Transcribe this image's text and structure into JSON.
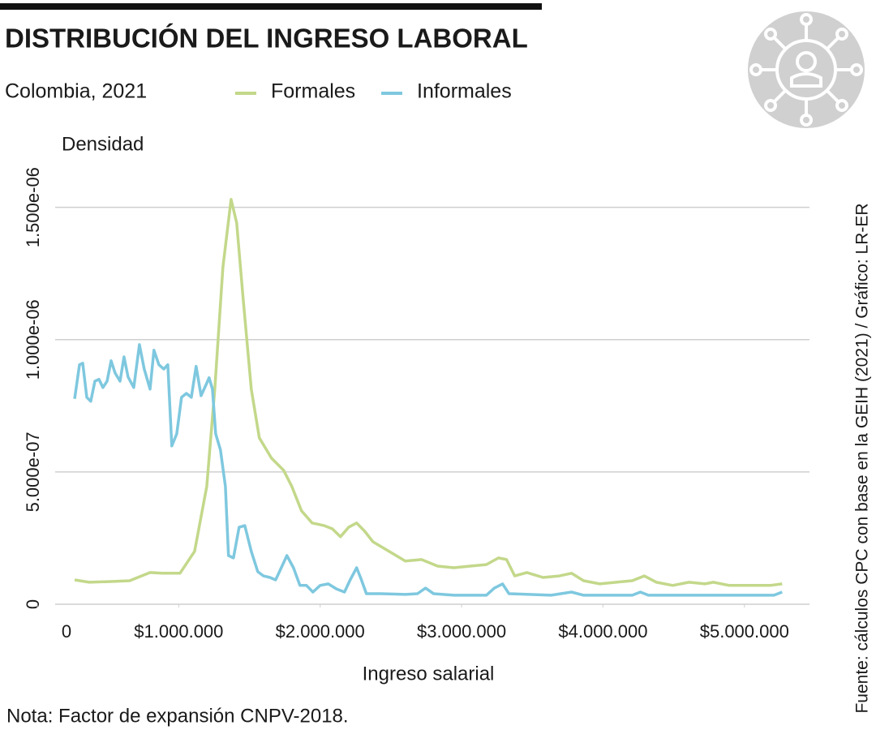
{
  "chart_data": {
    "type": "line",
    "title": "DISTRIBUCIÓN DEL INGRESO LABORAL",
    "subtitle": "Colombia, 2021",
    "y_label": "Densidad",
    "x_label": "Ingreso salarial",
    "note": "Nota: Factor de expansión CNPV-2018.",
    "source": "Fuente: cálculos CPC con base en la GEIH (2021) / Gráfico: LR-ER",
    "xlim": [
      0,
      5460000
    ],
    "ylim": [
      0,
      1.6e-06
    ],
    "xticks": [
      0,
      {
        "value": 1000000,
        "label": "$1.000.000"
      },
      {
        "value": 2000000,
        "label": "$2.000.000"
      },
      {
        "value": 3000000,
        "label": "$3.000.000"
      },
      {
        "value": 4000000,
        "label": "$4.000.000"
      },
      {
        "value": 5000000,
        "label": "$5.000.000"
      }
    ],
    "yticks": [
      0,
      {
        "value": 5e-07,
        "label": "5.000e-07"
      },
      {
        "value": 1e-06,
        "label": "1.000e-06"
      },
      {
        "value": 1.5e-06,
        "label": "1.500e-06"
      }
    ],
    "grid": true,
    "series": [
      {
        "name": "Formales",
        "color": "#c3d88a",
        "x": [
          264000,
          367000,
          539000,
          653000,
          797000,
          883000,
          1009000,
          1112000,
          1198000,
          1255000,
          1312000,
          1370000,
          1410000,
          1456000,
          1513000,
          1570000,
          1656000,
          1742000,
          1800000,
          1868000,
          1943000,
          2029000,
          2086000,
          2143000,
          2201000,
          2258000,
          2315000,
          2373000,
          2487000,
          2602000,
          2716000,
          2831000,
          2946000,
          3060000,
          3175000,
          3261000,
          3318000,
          3376000,
          3462000,
          3576000,
          3691000,
          3777000,
          3863000,
          3977000,
          4092000,
          4206000,
          4292000,
          4378000,
          4493000,
          4608000,
          4722000,
          4780000,
          4894000,
          5066000,
          5181000,
          5267000
        ],
        "values": [
          9.2e-08,
          8.3e-08,
          8.6e-08,
          8.9e-08,
          1.2e-07,
          1.17e-07,
          1.17e-07,
          2e-07,
          4.45e-07,
          8.13e-07,
          1.273e-06,
          1.53e-06,
          1.441e-06,
          1.15e-06,
          8.13e-07,
          6.29e-07,
          5.52e-07,
          5.06e-07,
          4.45e-07,
          3.53e-07,
          3.07e-07,
          2.97e-07,
          2.85e-07,
          2.55e-07,
          2.91e-07,
          3.07e-07,
          2.76e-07,
          2.36e-07,
          2e-07,
          1.63e-07,
          1.69e-07,
          1.44e-07,
          1.38e-07,
          1.44e-07,
          1.5e-07,
          1.75e-07,
          1.69e-07,
          1.07e-07,
          1.2e-07,
          1.01e-07,
          1.07e-07,
          1.17e-07,
          8.9e-08,
          7.7e-08,
          8.3e-08,
          8.9e-08,
          1.07e-07,
          8.3e-08,
          7.1e-08,
          8.3e-08,
          7.7e-08,
          8.3e-08,
          7.1e-08,
          7.1e-08,
          7.1e-08,
          7.7e-08
        ]
      },
      {
        "name": "Informales",
        "color": "#7ec8df",
        "x": [
          264000,
          298000,
          321000,
          350000,
          378000,
          407000,
          436000,
          464000,
          493000,
          522000,
          550000,
          585000,
          613000,
          642000,
          682000,
          722000,
          756000,
          797000,
          825000,
          860000,
          894000,
          923000,
          951000,
          986000,
          1020000,
          1054000,
          1089000,
          1123000,
          1158000,
          1192000,
          1215000,
          1238000,
          1261000,
          1295000,
          1330000,
          1352000,
          1387000,
          1427000,
          1467000,
          1513000,
          1559000,
          1599000,
          1645000,
          1685000,
          1725000,
          1765000,
          1811000,
          1857000,
          1903000,
          1949000,
          2000000,
          2057000,
          2115000,
          2172000,
          2212000,
          2258000,
          2292000,
          2327000,
          2430000,
          2602000,
          2688000,
          2745000,
          2802000,
          2946000,
          3175000,
          3232000,
          3290000,
          3335000,
          3633000,
          3777000,
          3863000,
          4207000,
          4264000,
          4321000,
          4894000,
          5209000,
          5267000
        ],
        "values": [
          7.76e-07,
          9.05e-07,
          9.11e-07,
          7.82e-07,
          7.67e-07,
          8.43e-07,
          8.5e-07,
          8.19e-07,
          8.43e-07,
          9.2e-07,
          8.74e-07,
          8.43e-07,
          9.35e-07,
          8.59e-07,
          8.19e-07,
          9.81e-07,
          8.89e-07,
          8.13e-07,
          9.6e-07,
          9.05e-07,
          8.89e-07,
          9.05e-07,
          5.98e-07,
          6.44e-07,
          7.82e-07,
          7.97e-07,
          7.82e-07,
          8.99e-07,
          7.88e-07,
          8.28e-07,
          8.56e-07,
          8.13e-07,
          6.44e-07,
          5.83e-07,
          4.45e-07,
          1.84e-07,
          1.75e-07,
          2.91e-07,
          2.97e-07,
          2e-07,
          1.23e-07,
          1.07e-07,
          1.01e-07,
          9.2e-08,
          1.38e-07,
          1.84e-07,
          1.38e-07,
          7.1e-08,
          7.1e-08,
          4.6e-08,
          7.1e-08,
          7.7e-08,
          5.8e-08,
          4.6e-08,
          9.2e-08,
          1.38e-07,
          9.2e-08,
          4e-08,
          4e-08,
          3.7e-08,
          4e-08,
          6.1e-08,
          4e-08,
          3.4e-08,
          3.4e-08,
          6.1e-08,
          7.7e-08,
          4e-08,
          3.4e-08,
          4.6e-08,
          3.4e-08,
          3.4e-08,
          4.6e-08,
          3.4e-08,
          3.4e-08,
          3.4e-08,
          4.6e-08
        ]
      }
    ]
  }
}
